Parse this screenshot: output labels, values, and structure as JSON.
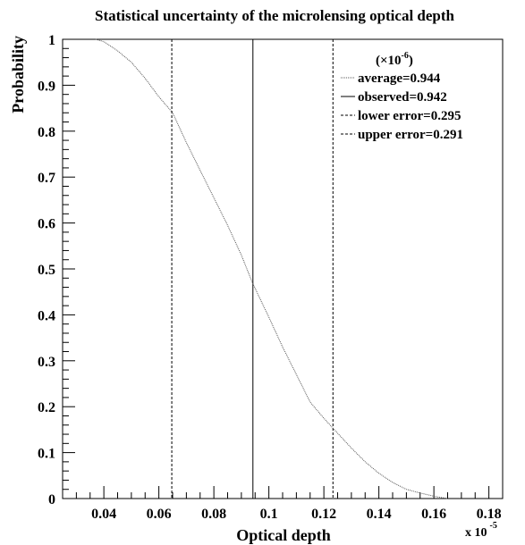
{
  "chart_data": {
    "type": "line",
    "title": "Statistical uncertainty of the microlensing optical depth",
    "xlabel": "Optical depth",
    "ylabel": "Probability",
    "x_multiplier": "x 10",
    "x_multiplier_exp": "-5",
    "xlim": [
      0.025,
      0.185
    ],
    "ylim": [
      0,
      1
    ],
    "x_ticks": [
      "0.04",
      "0.06",
      "0.08",
      "0.1",
      "0.12",
      "0.14",
      "0.16",
      "0.18"
    ],
    "y_ticks": [
      "0",
      "0.1",
      "0.2",
      "0.3",
      "0.4",
      "0.5",
      "0.6",
      "0.7",
      "0.8",
      "0.9",
      "1"
    ],
    "grid": false,
    "legend_position": "top-right",
    "legend_header": "(×10",
    "legend_header_exp": "-6",
    "legend_header_close": ")",
    "series": [
      {
        "name": "average=0.944",
        "x": [
          0.037,
          0.04,
          0.045,
          0.05,
          0.055,
          0.06,
          0.065,
          0.07,
          0.075,
          0.08,
          0.085,
          0.09,
          0.094,
          0.1,
          0.105,
          0.11,
          0.115,
          0.12,
          0.123,
          0.13,
          0.135,
          0.14,
          0.145,
          0.15,
          0.155,
          0.16,
          0.165
        ],
        "y": [
          1.0,
          0.995,
          0.975,
          0.95,
          0.915,
          0.875,
          0.84,
          0.775,
          0.715,
          0.655,
          0.595,
          0.53,
          0.47,
          0.395,
          0.33,
          0.27,
          0.21,
          0.175,
          0.155,
          0.11,
          0.08,
          0.055,
          0.035,
          0.02,
          0.012,
          0.005,
          0.0
        ]
      }
    ],
    "vertical_lines": [
      {
        "name": "observed=0.942",
        "x": 0.0942,
        "style": "solid"
      },
      {
        "name": "lower error=0.295",
        "x": 0.0647,
        "style": "dashed"
      },
      {
        "name": "upper error=0.291",
        "x": 0.1233,
        "style": "dashed"
      }
    ]
  }
}
